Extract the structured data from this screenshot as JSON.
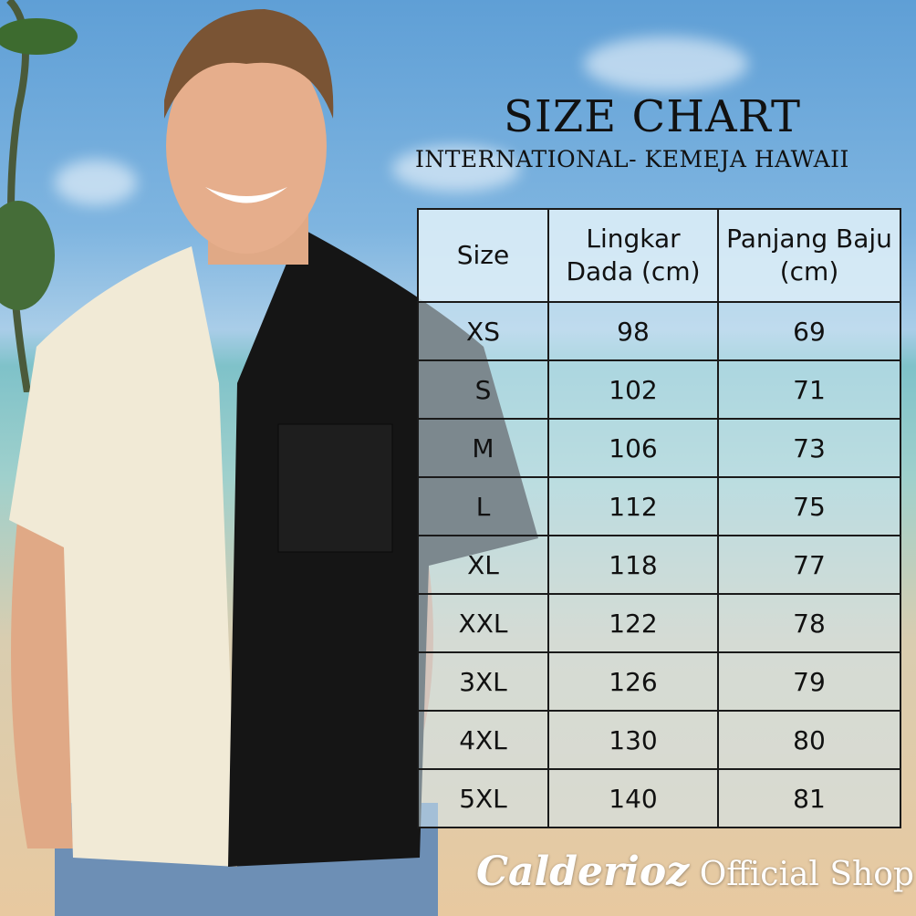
{
  "title": "SIZE CHART",
  "subtitle": "INTERNATIONAL- KEMEJA HAWAII",
  "table": {
    "headers": [
      "Size",
      "Lingkar Dada (cm)",
      "Panjang Baju (cm)"
    ],
    "rows": [
      [
        "XS",
        "98",
        "69"
      ],
      [
        "S",
        "102",
        "71"
      ],
      [
        "M",
        "106",
        "73"
      ],
      [
        "L",
        "112",
        "75"
      ],
      [
        "XL",
        "118",
        "77"
      ],
      [
        "XXL",
        "122",
        "78"
      ],
      [
        "3XL",
        "126",
        "79"
      ],
      [
        "4XL",
        "130",
        "80"
      ],
      [
        "5XL",
        "140",
        "81"
      ]
    ]
  },
  "brand": {
    "name": "Calderioz",
    "suffix": "Official Shop"
  }
}
